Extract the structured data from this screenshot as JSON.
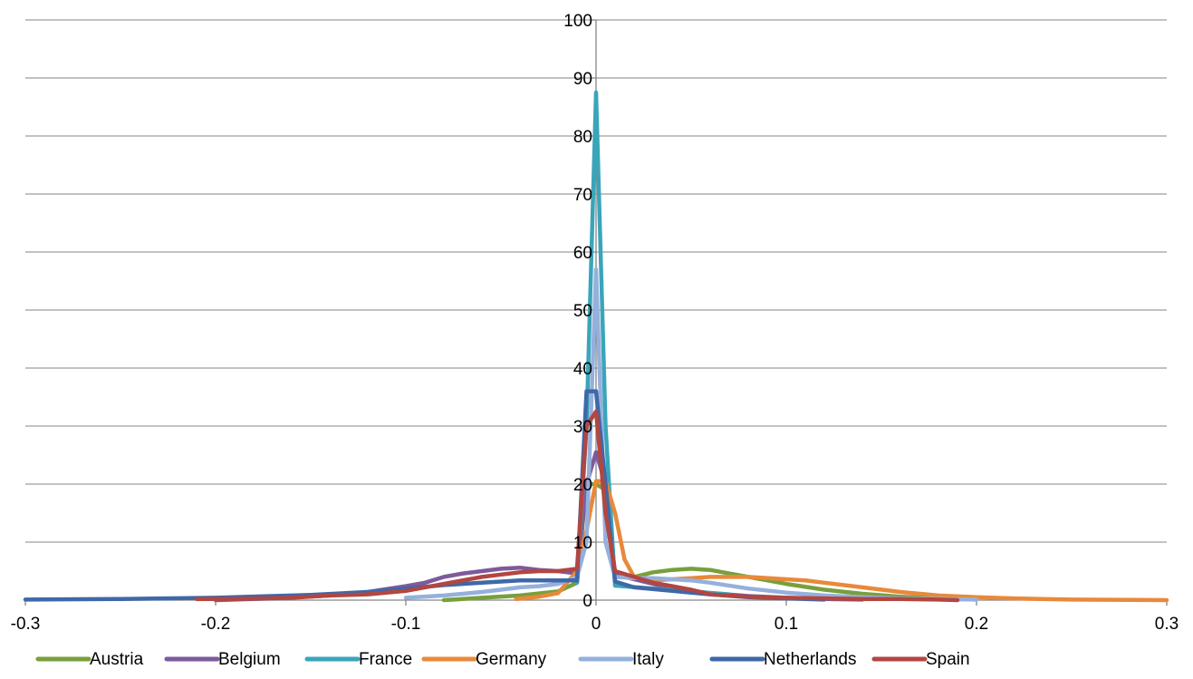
{
  "chart_data": {
    "type": "line",
    "title": "",
    "xlabel": "",
    "ylabel": "",
    "xlim": [
      -0.3,
      0.3
    ],
    "ylim": [
      0,
      100
    ],
    "x_ticks": [
      "-0.3",
      "-0.2",
      "-0.1",
      "0",
      "0.1",
      "0.2",
      "0.3"
    ],
    "y_ticks": [
      "0",
      "10",
      "20",
      "30",
      "40",
      "50",
      "60",
      "70",
      "80",
      "90",
      "100"
    ],
    "grid": true,
    "legend_position": "bottom",
    "series": [
      {
        "name": "Austria",
        "color": "#77A03C",
        "points": [
          [
            -0.08,
            0
          ],
          [
            -0.06,
            0.4
          ],
          [
            -0.04,
            0.8
          ],
          [
            -0.02,
            1.5
          ],
          [
            -0.01,
            3
          ],
          [
            -0.005,
            20
          ],
          [
            0,
            20
          ],
          [
            0.005,
            19
          ],
          [
            0.01,
            4
          ],
          [
            0.02,
            4
          ],
          [
            0.03,
            4.8
          ],
          [
            0.04,
            5.2
          ],
          [
            0.05,
            5.4
          ],
          [
            0.06,
            5.2
          ],
          [
            0.07,
            4.6
          ],
          [
            0.08,
            4
          ],
          [
            0.09,
            3.4
          ],
          [
            0.1,
            2.8
          ],
          [
            0.12,
            1.8
          ],
          [
            0.14,
            1.1
          ],
          [
            0.16,
            0.6
          ],
          [
            0.18,
            0.3
          ],
          [
            0.2,
            0.1
          ]
        ]
      },
      {
        "name": "Belgium",
        "color": "#7E5A9C",
        "points": [
          [
            -0.2,
            0
          ],
          [
            -0.17,
            0.3
          ],
          [
            -0.14,
            0.8
          ],
          [
            -0.12,
            1.4
          ],
          [
            -0.1,
            2.4
          ],
          [
            -0.09,
            3
          ],
          [
            -0.08,
            4
          ],
          [
            -0.07,
            4.6
          ],
          [
            -0.06,
            5
          ],
          [
            -0.05,
            5.4
          ],
          [
            -0.04,
            5.6
          ],
          [
            -0.03,
            5.2
          ],
          [
            -0.02,
            5
          ],
          [
            -0.01,
            4.6
          ],
          [
            -0.005,
            20
          ],
          [
            0,
            25.5
          ],
          [
            0.005,
            20
          ],
          [
            0.01,
            4.4
          ],
          [
            0.02,
            3.6
          ],
          [
            0.03,
            2.8
          ],
          [
            0.04,
            2
          ],
          [
            0.06,
            1.2
          ],
          [
            0.08,
            0.7
          ],
          [
            0.1,
            0.4
          ],
          [
            0.12,
            0.2
          ],
          [
            0.14,
            0.1
          ]
        ]
      },
      {
        "name": "France",
        "color": "#3AA5BA",
        "points": [
          [
            -0.01,
            3
          ],
          [
            -0.005,
            30
          ],
          [
            0,
            87.5
          ],
          [
            0.005,
            30
          ],
          [
            0.01,
            2.5
          ],
          [
            0.03,
            2
          ],
          [
            0.05,
            1.5
          ],
          [
            0.07,
            1
          ]
        ]
      },
      {
        "name": "Germany",
        "color": "#E8893A",
        "points": [
          [
            -0.042,
            0.2
          ],
          [
            -0.03,
            0.6
          ],
          [
            -0.02,
            1.2
          ],
          [
            -0.01,
            5
          ],
          [
            -0.005,
            12
          ],
          [
            0,
            20.5
          ],
          [
            0.005,
            20.5
          ],
          [
            0.01,
            15
          ],
          [
            0.015,
            7
          ],
          [
            0.02,
            4
          ],
          [
            0.03,
            3.4
          ],
          [
            0.05,
            3.8
          ],
          [
            0.06,
            4
          ],
          [
            0.08,
            4
          ],
          [
            0.1,
            3.6
          ],
          [
            0.11,
            3.4
          ],
          [
            0.12,
            3
          ],
          [
            0.14,
            2.2
          ],
          [
            0.16,
            1.4
          ],
          [
            0.18,
            0.8
          ],
          [
            0.2,
            0.5
          ],
          [
            0.22,
            0.3
          ],
          [
            0.25,
            0.1
          ],
          [
            0.3,
            0
          ]
        ]
      },
      {
        "name": "Italy",
        "color": "#95B0DC",
        "points": [
          [
            -0.1,
            0.4
          ],
          [
            -0.08,
            0.8
          ],
          [
            -0.06,
            1.4
          ],
          [
            -0.05,
            1.8
          ],
          [
            -0.04,
            2.2
          ],
          [
            -0.03,
            2.4
          ],
          [
            -0.02,
            2.8
          ],
          [
            -0.01,
            4
          ],
          [
            -0.005,
            10
          ],
          [
            0,
            57
          ],
          [
            0.005,
            10
          ],
          [
            0.01,
            4
          ],
          [
            0.02,
            3.8
          ],
          [
            0.03,
            3.8
          ],
          [
            0.04,
            3.6
          ],
          [
            0.05,
            3.4
          ],
          [
            0.06,
            3
          ],
          [
            0.08,
            2
          ],
          [
            0.1,
            1.3
          ],
          [
            0.12,
            0.8
          ],
          [
            0.14,
            0.5
          ],
          [
            0.16,
            0.3
          ],
          [
            0.18,
            0.2
          ],
          [
            0.2,
            0.1
          ]
        ]
      },
      {
        "name": "Netherlands",
        "color": "#3F68A8",
        "points": [
          [
            -0.3,
            0.1
          ],
          [
            -0.25,
            0.2
          ],
          [
            -0.2,
            0.4
          ],
          [
            -0.15,
            0.9
          ],
          [
            -0.12,
            1.4
          ],
          [
            -0.1,
            2
          ],
          [
            -0.08,
            2.6
          ],
          [
            -0.06,
            3
          ],
          [
            -0.04,
            3.4
          ],
          [
            -0.02,
            3.4
          ],
          [
            -0.01,
            3.4
          ],
          [
            -0.005,
            36
          ],
          [
            0,
            36
          ],
          [
            0.005,
            20
          ],
          [
            0.01,
            3.2
          ],
          [
            0.02,
            2.2
          ],
          [
            0.04,
            1.6
          ],
          [
            0.06,
            1
          ],
          [
            0.08,
            0.5
          ],
          [
            0.1,
            0.3
          ],
          [
            0.12,
            0.1
          ]
        ]
      },
      {
        "name": "Spain",
        "color": "#B24641",
        "points": [
          [
            -0.21,
            0.2
          ],
          [
            -0.19,
            0.2
          ],
          [
            -0.16,
            0.4
          ],
          [
            -0.14,
            0.8
          ],
          [
            -0.12,
            1
          ],
          [
            -0.1,
            1.6
          ],
          [
            -0.09,
            2.2
          ],
          [
            -0.08,
            2.8
          ],
          [
            -0.07,
            3.4
          ],
          [
            -0.06,
            4
          ],
          [
            -0.05,
            4.4
          ],
          [
            -0.04,
            4.8
          ],
          [
            -0.03,
            5
          ],
          [
            -0.02,
            5
          ],
          [
            -0.01,
            5.4
          ],
          [
            -0.005,
            30
          ],
          [
            0,
            32.5
          ],
          [
            0.005,
            15
          ],
          [
            0.01,
            5
          ],
          [
            0.02,
            4
          ],
          [
            0.03,
            3
          ],
          [
            0.04,
            2.4
          ],
          [
            0.05,
            1.8
          ],
          [
            0.06,
            1
          ],
          [
            0.08,
            0.6
          ],
          [
            0.1,
            0.4
          ],
          [
            0.12,
            0.3
          ],
          [
            0.14,
            0.2
          ],
          [
            0.16,
            0.2
          ],
          [
            0.18,
            0.1
          ],
          [
            0.19,
            0
          ]
        ]
      }
    ]
  }
}
